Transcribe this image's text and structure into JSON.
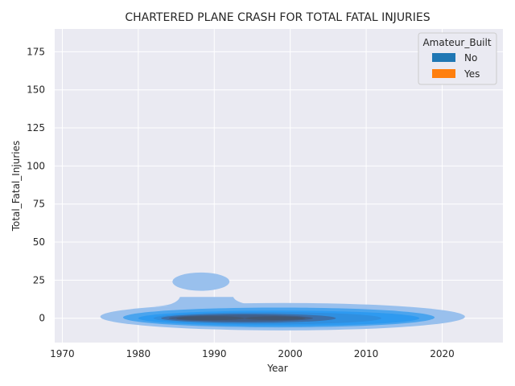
{
  "chart_data": {
    "type": "kde",
    "title": "CHARTERED PLANE CRASH FOR TOTAL FATAL INJURIES",
    "xlabel": "Year",
    "ylabel": "Total_Fatal_Injuries",
    "xlim": [
      1969,
      2028
    ],
    "ylim": [
      -16,
      190
    ],
    "x_ticks": [
      1970,
      1980,
      1990,
      2000,
      2010,
      2020
    ],
    "y_ticks": [
      0,
      25,
      50,
      75,
      100,
      125,
      150,
      175
    ],
    "grid": true,
    "legend": {
      "title": "Amateur_Built",
      "placement": "top-right",
      "entries": [
        {
          "label": "No",
          "color": "#1f77b4"
        },
        {
          "label": "Yes",
          "color": "#ff7f0e"
        }
      ]
    },
    "series": [
      {
        "name": "No",
        "color": "#1f77b4",
        "levels": [
          {
            "alpha": 0.45,
            "center": [
              1999,
              0
            ],
            "x_range": [
              1975,
              2023
            ],
            "y_range": [
              -8,
              10
            ]
          },
          {
            "alpha": 0.45,
            "center": [
              1989,
              24
            ],
            "x_range": [
              1984.5,
              1992
            ],
            "y_range": [
              18,
              30
            ]
          },
          {
            "alpha": 0.6,
            "center": [
              1998,
              0
            ],
            "x_range": [
              1978,
              2019
            ],
            "y_range": [
              -6,
              7
            ]
          },
          {
            "alpha": 0.7,
            "center": [
              1998,
              0
            ],
            "x_range": [
              1980,
              2017
            ],
            "y_range": [
              -5,
              5
            ]
          },
          {
            "alpha": 0.75,
            "center": [
              1996,
              0
            ],
            "x_range": [
              1982,
              2012
            ],
            "y_range": [
              -4,
              4
            ]
          },
          {
            "alpha": 0.8,
            "center": [
              1994,
              0
            ],
            "x_range": [
              1983,
              2006
            ],
            "y_range": [
              -3,
              3
            ]
          },
          {
            "alpha": 0.85,
            "center": [
              1992,
              0
            ],
            "x_range": [
              1984,
              2003
            ],
            "y_range": [
              -2.2,
              2.2
            ]
          },
          {
            "alpha": 0.9,
            "center": [
              1989,
              0
            ],
            "x_range": [
              1985,
              1994
            ],
            "y_range": [
              -1.3,
              1.3
            ]
          },
          {
            "alpha": 0.9,
            "center": [
              1998,
              0
            ],
            "x_range": [
              1994,
              2002
            ],
            "y_range": [
              -1.2,
              1.2
            ]
          }
        ]
      },
      {
        "name": "Yes",
        "color": "#ff7f0e",
        "levels": []
      }
    ]
  }
}
